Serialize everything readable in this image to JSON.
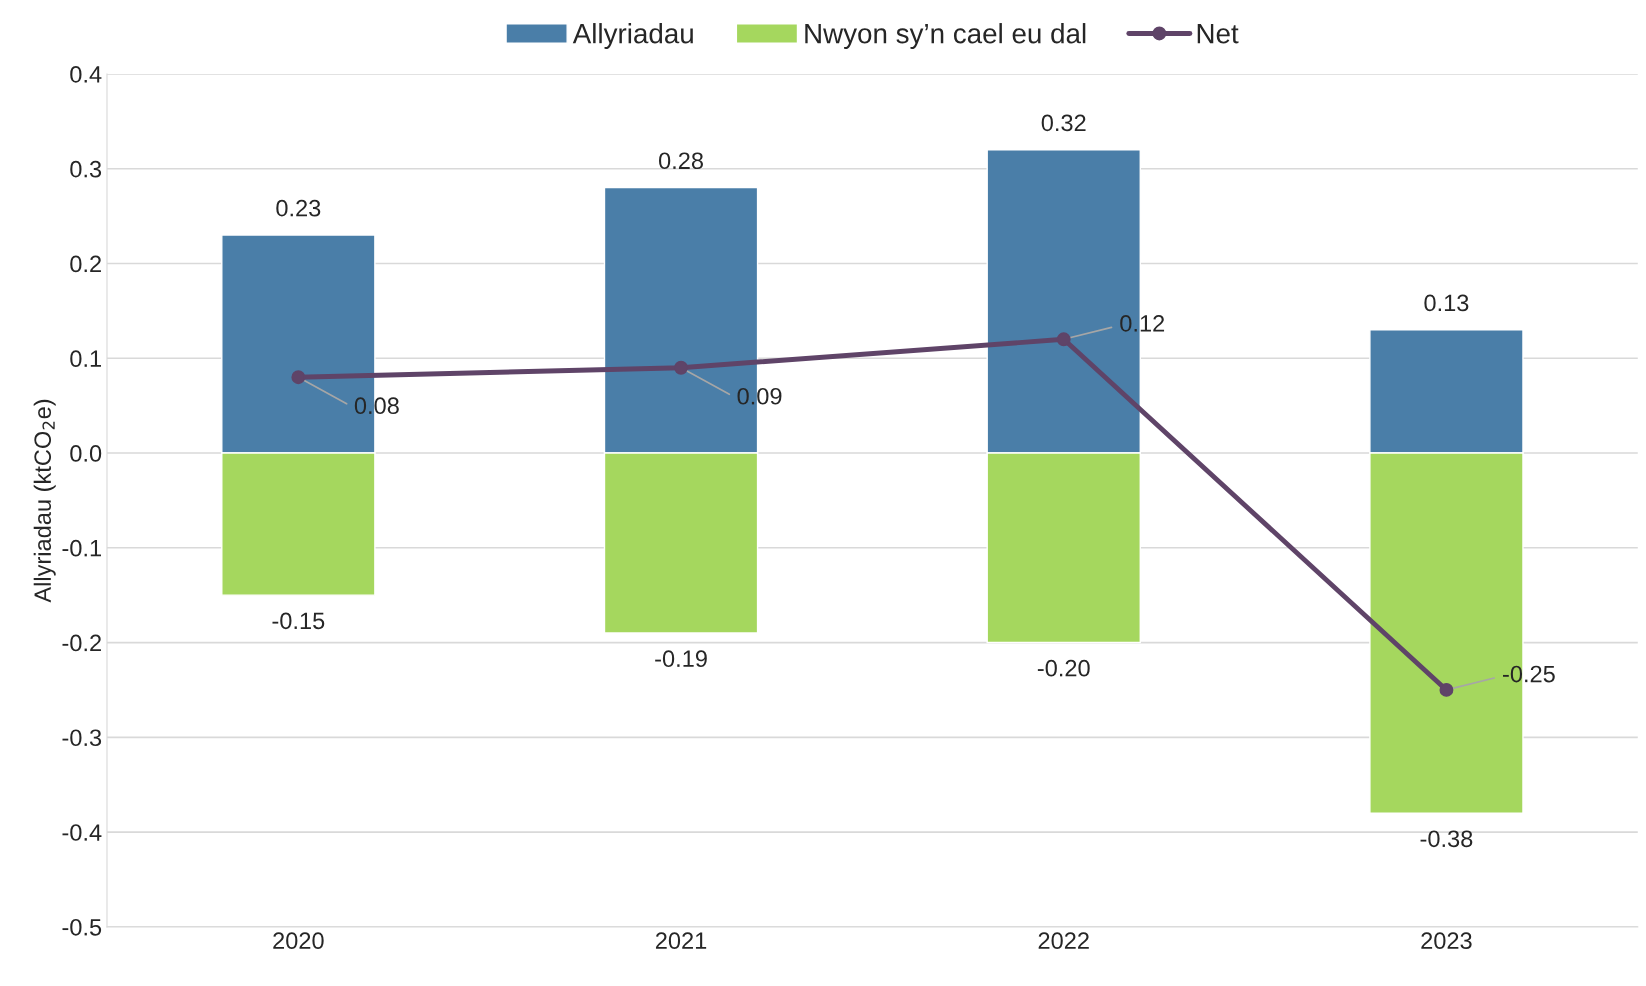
{
  "chart_data": {
    "type": "bar",
    "stacked": true,
    "ylabel": "Allyriadau (ktCO$_{2}$e)",
    "categories": [
      "2020",
      "2021",
      "2022",
      "2023"
    ],
    "series": [
      {
        "name": "Allyriadau",
        "color": "#4a7ea8",
        "values": [
          0.23,
          0.28,
          0.32,
          0.13
        ],
        "value_labels": [
          "0.23",
          "0.28",
          "0.32",
          "0.13"
        ]
      },
      {
        "name": "Nwyon sy’n cael eu dal",
        "color": "#a5d75e",
        "values": [
          -0.15,
          -0.19,
          -0.2,
          -0.38
        ],
        "value_labels": [
          "-0.15",
          "-0.19",
          "-0.20",
          "-0.38"
        ]
      },
      {
        "name": "Net",
        "type": "line",
        "color": "#5f4468",
        "marker": "circle",
        "values": [
          0.08,
          0.09,
          0.12,
          -0.25
        ],
        "value_labels": [
          "0.08",
          "0.09",
          "0.12",
          "-0.25"
        ]
      }
    ],
    "ylim": [
      -0.5,
      0.4
    ],
    "yticks": [
      {
        "value": -0.5,
        "label": "-0.5"
      },
      {
        "value": -0.4,
        "label": "-0.4"
      },
      {
        "value": -0.3,
        "label": "-0.3"
      },
      {
        "value": -0.2,
        "label": "-0.2"
      },
      {
        "value": -0.1,
        "label": "-0.1"
      },
      {
        "value": 0,
        "label": "0.0"
      },
      {
        "value": 0.1,
        "label": "0.1"
      },
      {
        "value": 0.2,
        "label": "0.2"
      },
      {
        "value": 0.3,
        "label": "0.3"
      },
      {
        "value": 0.4,
        "label": "0.4"
      }
    ],
    "grid": "y",
    "legend": "top"
  }
}
